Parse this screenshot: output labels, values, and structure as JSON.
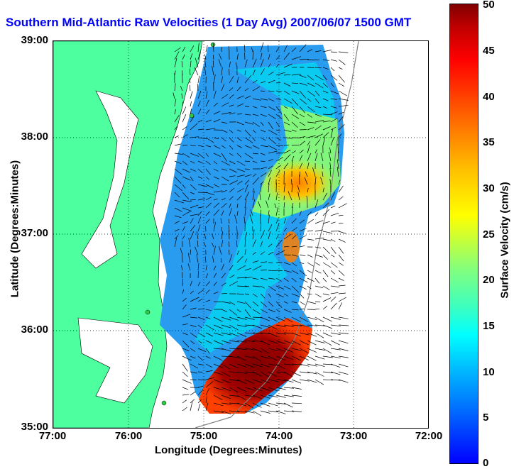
{
  "title": "Southern Mid-Atlantic Raw Velocities (1 Day Avg) 2007/06/07 1500 GMT",
  "xlabel": "Longitude (Degrees:Minutes)",
  "ylabel": "Latitude (Degrees:Minutes)",
  "x_ticks": [
    "77:00",
    "76:00",
    "75:00",
    "74:00",
    "73:00",
    "72:00"
  ],
  "y_ticks": [
    "39:00",
    "38:00",
    "37:00",
    "36:00",
    "35:00"
  ],
  "colorbar": {
    "label": "Surface Velocity (cm/s)",
    "ticks": [
      "50",
      "45",
      "40",
      "35",
      "30",
      "25",
      "20",
      "15",
      "10",
      "5",
      "0"
    ]
  },
  "colors": {
    "land": "#4dff9f",
    "title": "#0000ff"
  }
}
